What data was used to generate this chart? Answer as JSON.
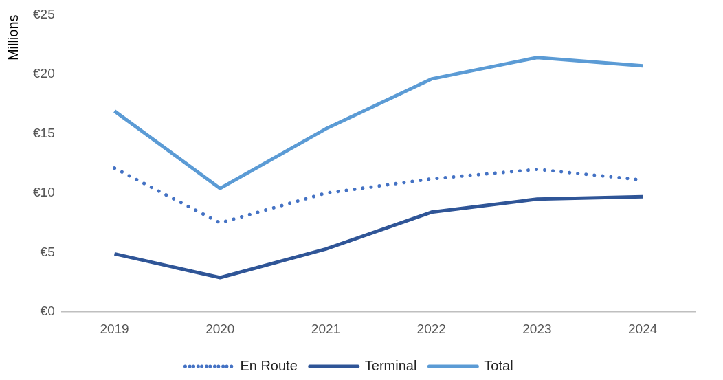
{
  "chart_data": {
    "type": "line",
    "ylabel": "Millions",
    "categories": [
      "2019",
      "2020",
      "2021",
      "2022",
      "2023",
      "2024"
    ],
    "series": [
      {
        "name": "En Route",
        "color": "#4472c4",
        "line_style": "dotted",
        "values": [
          12.1,
          7.5,
          10.0,
          11.2,
          12.0,
          11.1
        ]
      },
      {
        "name": "Terminal",
        "color": "#2f5597",
        "line_style": "solid",
        "values": [
          4.9,
          2.9,
          5.3,
          8.4,
          9.5,
          9.7
        ]
      },
      {
        "name": "Total",
        "color": "#5b9bd5",
        "line_style": "solid",
        "values": [
          16.9,
          10.4,
          15.4,
          19.6,
          21.4,
          20.7
        ]
      }
    ],
    "ylim": [
      0,
      25
    ],
    "yticks": [
      {
        "value": 0,
        "label": "€0"
      },
      {
        "value": 5,
        "label": "€5"
      },
      {
        "value": 10,
        "label": "€10"
      },
      {
        "value": 15,
        "label": "€15"
      },
      {
        "value": 20,
        "label": "€20"
      },
      {
        "value": 25,
        "label": "€25"
      }
    ],
    "grid": false,
    "legend": "bottom",
    "marker": "none"
  }
}
